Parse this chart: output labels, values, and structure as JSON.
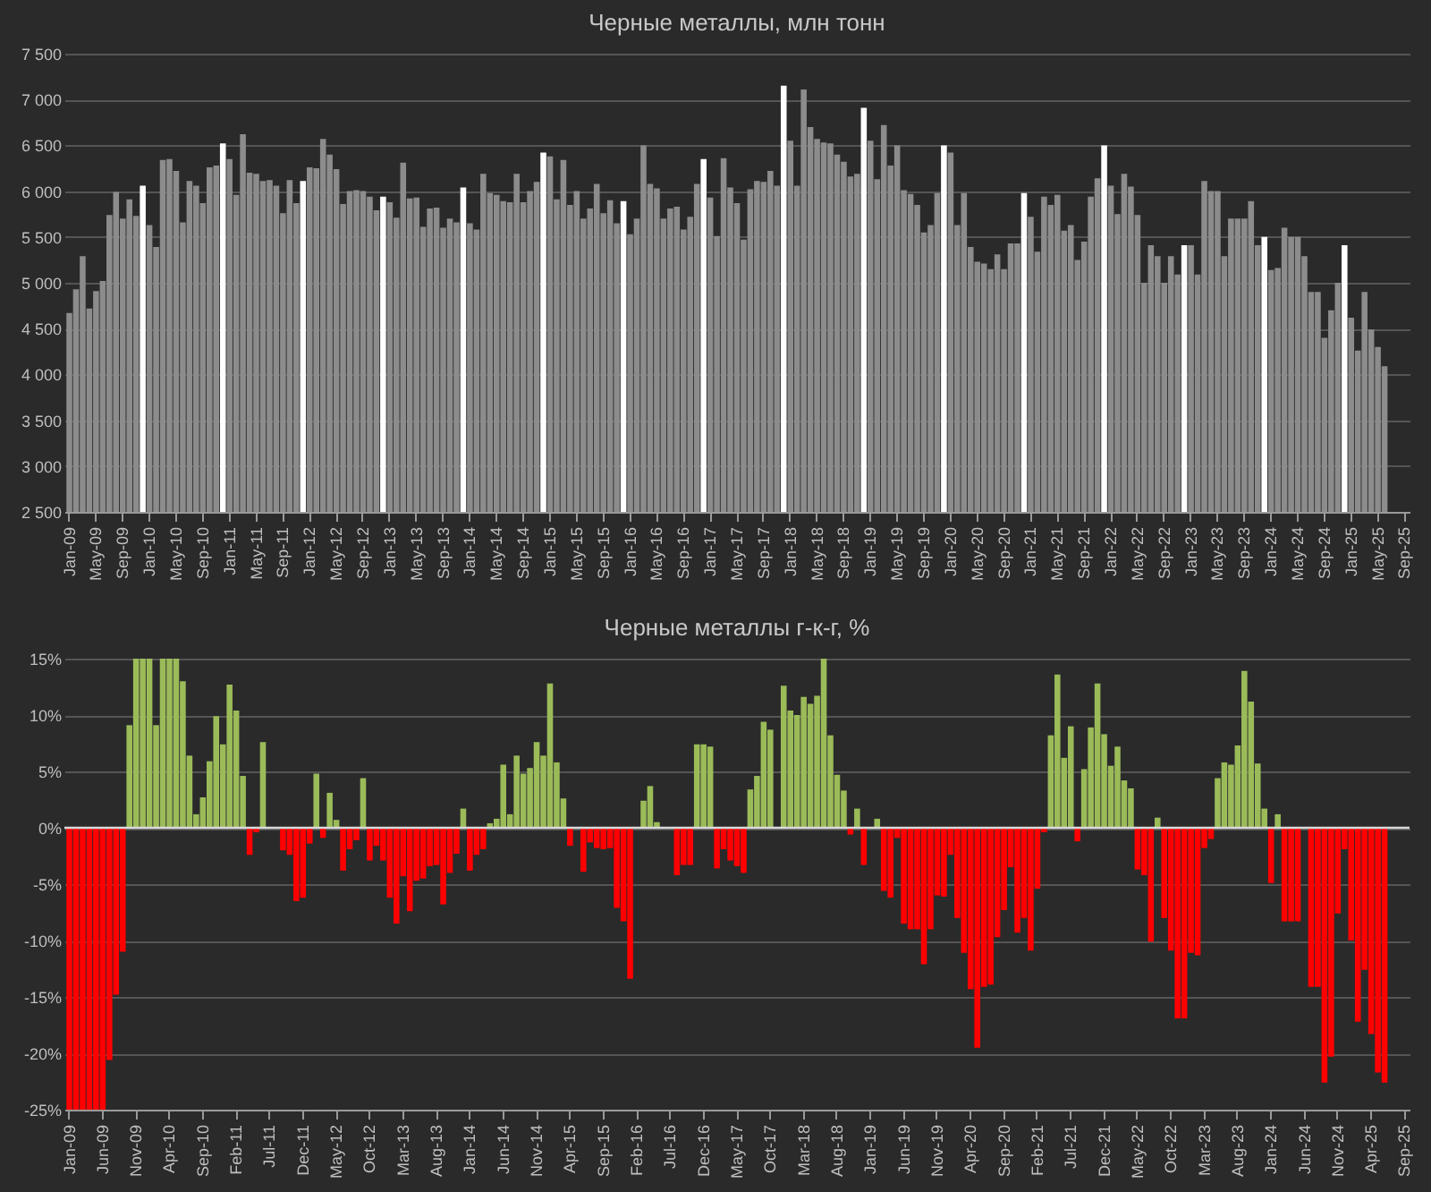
{
  "chart_data": [
    {
      "type": "bar",
      "title": "Черные металлы, млн тонн",
      "categories": [
        "Jan-09",
        null,
        null,
        null,
        "May-09",
        null,
        null,
        null,
        "Sep-09",
        null,
        null,
        null,
        "Jan-10",
        null,
        null,
        null,
        "May-10",
        null,
        null,
        null,
        "Sep-10",
        null,
        null,
        null,
        "Jan-11",
        null,
        null,
        null,
        "May-11",
        null,
        null,
        null,
        "Sep-11",
        null,
        null,
        null,
        "Jan-12",
        null,
        null,
        null,
        "May-12",
        null,
        null,
        null,
        "Sep-12",
        null,
        null,
        null,
        "Jan-13",
        null,
        null,
        null,
        "May-13",
        null,
        null,
        null,
        "Sep-13",
        null,
        null,
        null,
        "Jan-14",
        null,
        null,
        null,
        "May-14",
        null,
        null,
        null,
        "Sep-14",
        null,
        null,
        null,
        "Jan-15",
        null,
        null,
        null,
        "May-15",
        null,
        null,
        null,
        "Sep-15",
        null,
        null,
        null,
        "Jan-16",
        null,
        null,
        null,
        "May-16",
        null,
        null,
        null,
        "Sep-16",
        null,
        null,
        null,
        "Jan-17",
        null,
        null,
        null,
        "May-17",
        null,
        null,
        null,
        "Sep-17",
        null,
        null,
        null,
        "Jan-18",
        null,
        null,
        null,
        "May-18",
        null,
        null,
        null,
        "Sep-18",
        null,
        null,
        null,
        "Jan-19",
        null,
        null,
        null,
        "May-19",
        null,
        null,
        null,
        "Sep-19",
        null,
        null,
        null,
        "Jan-20",
        null,
        null,
        null,
        "May-20",
        null,
        null,
        null,
        "Sep-20",
        null,
        null,
        null,
        "Jan-21",
        null,
        null,
        null,
        "May-21",
        null,
        null,
        null,
        "Sep-21",
        null,
        null,
        null,
        "Jan-22",
        null,
        null,
        null,
        "May-22",
        null,
        null,
        null,
        "Sep-22",
        null,
        null,
        null,
        "Jan-23",
        null,
        null,
        null,
        "May-23",
        null,
        null,
        null,
        "Sep-23",
        null,
        null,
        null,
        "Jan-24",
        null,
        null,
        null,
        "May-24",
        null,
        null,
        null,
        "Sep-24",
        null,
        null,
        null,
        "Jan-25",
        null,
        null,
        null,
        "May-25",
        null,
        null,
        null,
        "Sep-25"
      ],
      "values": [
        4670,
        4930,
        5290,
        4720,
        4910,
        5020,
        5740,
        5990,
        5700,
        5910,
        5730,
        6060,
        5630,
        5390,
        6340,
        6350,
        6220,
        5660,
        6110,
        6060,
        5870,
        6260,
        6280,
        6520,
        6350,
        5960,
        6620,
        6200,
        6190,
        6110,
        6120,
        6060,
        5760,
        6120,
        5870,
        6110,
        6260,
        6250,
        6570,
        6400,
        6240,
        5860,
        6000,
        6010,
        6000,
        5940,
        5790,
        5940,
        5880,
        5710,
        6310,
        5920,
        5930,
        5610,
        5810,
        5820,
        5600,
        5700,
        5660,
        6040,
        5650,
        5580,
        6190,
        5980,
        5960,
        5890,
        5880,
        6190,
        5880,
        6000,
        6100,
        6420,
        6380,
        5910,
        6340,
        5850,
        6000,
        5700,
        5810,
        6080,
        5760,
        5900,
        5650,
        5890,
        5530,
        5700,
        6500,
        6080,
        6030,
        5700,
        5810,
        5830,
        5580,
        5720,
        6080,
        6350,
        5930,
        5510,
        6360,
        6040,
        5870,
        5470,
        6020,
        6110,
        6100,
        6220,
        6060,
        7150,
        6550,
        6060,
        7110,
        6700,
        6570,
        6530,
        6520,
        6400,
        6320,
        6160,
        6190,
        6910,
        6550,
        6130,
        6720,
        6280,
        6500,
        6010,
        5970,
        5850,
        5550,
        5630,
        5980,
        6500,
        6420,
        5630,
        5980,
        5390,
        5230,
        5210,
        5150,
        5310,
        5150,
        5430,
        5430,
        5980,
        5720,
        5340,
        5940,
        5850,
        5960,
        5570,
        5630,
        5250,
        5450,
        5940,
        6140,
        6500,
        6060,
        5750,
        6190,
        6050,
        5740,
        5000,
        5410,
        5290,
        5000,
        5290,
        5090,
        5410,
        5410,
        5090,
        6110,
        6000,
        6000,
        5290,
        5700,
        5700,
        5700,
        5890,
        5410,
        5500,
        5140,
        5160,
        5600,
        5500,
        5500,
        5290,
        4900,
        4900,
        4400,
        4700,
        5000,
        5410,
        4620,
        4260,
        4900,
        4490,
        4300,
        4090,
        null,
        null,
        null
      ],
      "colors": [
        "#8c8c8c",
        "#8c8c8c",
        "#8c8c8c",
        "#8c8c8c",
        "#8c8c8c",
        "#8c8c8c",
        "#8c8c8c",
        "#8c8c8c",
        "#8c8c8c",
        "#8c8c8c",
        "#8c8c8c",
        "#ffffff",
        "#8c8c8c",
        "#8c8c8c",
        "#8c8c8c",
        "#8c8c8c",
        "#8c8c8c",
        "#8c8c8c",
        "#8c8c8c",
        "#8c8c8c",
        "#8c8c8c",
        "#8c8c8c",
        "#8c8c8c",
        "#ffffff",
        "#8c8c8c",
        "#8c8c8c",
        "#8c8c8c",
        "#8c8c8c",
        "#8c8c8c",
        "#8c8c8c",
        "#8c8c8c",
        "#8c8c8c",
        "#8c8c8c",
        "#8c8c8c",
        "#8c8c8c",
        "#ffffff",
        "#8c8c8c",
        "#8c8c8c",
        "#8c8c8c",
        "#8c8c8c",
        "#8c8c8c",
        "#8c8c8c",
        "#8c8c8c",
        "#8c8c8c",
        "#8c8c8c",
        "#8c8c8c",
        "#8c8c8c",
        "#ffffff",
        "#8c8c8c",
        "#8c8c8c",
        "#8c8c8c",
        "#8c8c8c",
        "#8c8c8c",
        "#8c8c8c",
        "#8c8c8c",
        "#8c8c8c",
        "#8c8c8c",
        "#8c8c8c",
        "#8c8c8c",
        "#ffffff",
        "#8c8c8c",
        "#8c8c8c",
        "#8c8c8c",
        "#8c8c8c",
        "#8c8c8c",
        "#8c8c8c",
        "#8c8c8c",
        "#8c8c8c",
        "#8c8c8c",
        "#8c8c8c",
        "#8c8c8c",
        "#ffffff",
        "#8c8c8c",
        "#8c8c8c",
        "#8c8c8c",
        "#8c8c8c",
        "#8c8c8c",
        "#8c8c8c",
        "#8c8c8c",
        "#8c8c8c",
        "#8c8c8c",
        "#8c8c8c",
        "#8c8c8c",
        "#ffffff",
        "#8c8c8c",
        "#8c8c8c",
        "#8c8c8c",
        "#8c8c8c",
        "#8c8c8c",
        "#8c8c8c",
        "#8c8c8c",
        "#8c8c8c",
        "#8c8c8c",
        "#8c8c8c",
        "#8c8c8c",
        "#ffffff",
        "#8c8c8c",
        "#8c8c8c",
        "#8c8c8c",
        "#8c8c8c",
        "#8c8c8c",
        "#8c8c8c",
        "#8c8c8c",
        "#8c8c8c",
        "#8c8c8c",
        "#8c8c8c",
        "#8c8c8c",
        "#ffffff",
        "#8c8c8c",
        "#8c8c8c",
        "#8c8c8c",
        "#8c8c8c",
        "#8c8c8c",
        "#8c8c8c",
        "#8c8c8c",
        "#8c8c8c",
        "#8c8c8c",
        "#8c8c8c",
        "#8c8c8c",
        "#ffffff",
        "#8c8c8c",
        "#8c8c8c",
        "#8c8c8c",
        "#8c8c8c",
        "#8c8c8c",
        "#8c8c8c",
        "#8c8c8c",
        "#8c8c8c",
        "#8c8c8c",
        "#8c8c8c",
        "#8c8c8c",
        "#ffffff",
        "#8c8c8c",
        "#8c8c8c",
        "#8c8c8c",
        "#8c8c8c",
        "#8c8c8c",
        "#8c8c8c",
        "#8c8c8c",
        "#8c8c8c",
        "#8c8c8c",
        "#8c8c8c",
        "#8c8c8c",
        "#ffffff",
        "#8c8c8c",
        "#8c8c8c",
        "#8c8c8c",
        "#8c8c8c",
        "#8c8c8c",
        "#8c8c8c",
        "#8c8c8c",
        "#8c8c8c",
        "#8c8c8c",
        "#8c8c8c",
        "#8c8c8c",
        "#ffffff",
        "#8c8c8c",
        "#8c8c8c",
        "#8c8c8c",
        "#8c8c8c",
        "#8c8c8c",
        "#8c8c8c",
        "#8c8c8c",
        "#8c8c8c",
        "#8c8c8c",
        "#8c8c8c",
        "#8c8c8c",
        "#ffffff",
        "#8c8c8c",
        "#8c8c8c",
        "#8c8c8c",
        "#8c8c8c",
        "#8c8c8c",
        "#8c8c8c",
        "#8c8c8c",
        "#8c8c8c",
        "#8c8c8c",
        "#8c8c8c",
        "#8c8c8c",
        "#ffffff",
        "#8c8c8c",
        "#8c8c8c",
        "#8c8c8c",
        "#8c8c8c",
        "#8c8c8c",
        "#8c8c8c",
        "#8c8c8c",
        "#8c8c8c",
        "#8c8c8c",
        "#8c8c8c",
        "#8c8c8c",
        "#ffffff",
        "#8c8c8c",
        "#8c8c8c",
        "#8c8c8c",
        "#8c8c8c",
        "#8c8c8c",
        "#8c8c8c",
        null,
        null,
        null
      ],
      "ylim": [
        2500,
        7500
      ],
      "yticks": [
        {
          "value": 2500,
          "label": "2 500"
        },
        {
          "value": 3000,
          "label": "3 000"
        },
        {
          "value": 3500,
          "label": "3 500"
        },
        {
          "value": 4000,
          "label": "4 000"
        },
        {
          "value": 4500,
          "label": "4 500"
        },
        {
          "value": 5000,
          "label": "5 000"
        },
        {
          "value": 5500,
          "label": "5 500"
        },
        {
          "value": 6000,
          "label": "6 000"
        },
        {
          "value": 6500,
          "label": "6 500"
        },
        {
          "value": 7000,
          "label": "7 000"
        },
        {
          "value": 7500,
          "label": "7 500"
        }
      ],
      "grid": "y"
    },
    {
      "type": "bar",
      "title": "Черные металлы г-к-г, %",
      "categories": [
        "Jan-09",
        null,
        null,
        null,
        null,
        "Jun-09",
        null,
        null,
        null,
        null,
        "Nov-09",
        null,
        null,
        null,
        null,
        "Apr-10",
        null,
        null,
        null,
        null,
        "Sep-10",
        null,
        null,
        null,
        null,
        "Feb-11",
        null,
        null,
        null,
        null,
        "Jul-11",
        null,
        null,
        null,
        null,
        "Dec-11",
        null,
        null,
        null,
        null,
        "May-12",
        null,
        null,
        null,
        null,
        "Oct-12",
        null,
        null,
        null,
        null,
        "Mar-13",
        null,
        null,
        null,
        null,
        "Aug-13",
        null,
        null,
        null,
        null,
        "Jan-14",
        null,
        null,
        null,
        null,
        "Jun-14",
        null,
        null,
        null,
        null,
        "Nov-14",
        null,
        null,
        null,
        null,
        "Apr-15",
        null,
        null,
        null,
        null,
        "Sep-15",
        null,
        null,
        null,
        null,
        "Feb-16",
        null,
        null,
        null,
        null,
        "Jul-16",
        null,
        null,
        null,
        null,
        "Dec-16",
        null,
        null,
        null,
        null,
        "May-17",
        null,
        null,
        null,
        null,
        "Oct-17",
        null,
        null,
        null,
        null,
        "Mar-18",
        null,
        null,
        null,
        null,
        "Aug-18",
        null,
        null,
        null,
        null,
        "Jan-19",
        null,
        null,
        null,
        null,
        "Jun-19",
        null,
        null,
        null,
        null,
        "Nov-19",
        null,
        null,
        null,
        null,
        "Apr-20",
        null,
        null,
        null,
        null,
        "Sep-20",
        null,
        null,
        null,
        null,
        "Feb-21",
        null,
        null,
        null,
        null,
        "Jul-21",
        null,
        null,
        null,
        null,
        "Dec-21",
        null,
        null,
        null,
        null,
        "May-22",
        null,
        null,
        null,
        null,
        "Oct-22",
        null,
        null,
        null,
        null,
        "Mar-23",
        null,
        null,
        null,
        null,
        "Aug-23",
        null,
        null,
        null,
        null,
        "Jan-24",
        null,
        null,
        null,
        null,
        "Jun-24",
        null,
        null,
        null,
        null,
        "Nov-24",
        null,
        null,
        null,
        null,
        "Apr-25",
        null,
        null,
        null,
        null,
        "Sep-25"
      ],
      "values": [
        -25,
        -25,
        -25,
        -25,
        -25,
        -25,
        -20.6,
        -14.8,
        -11.0,
        9.1,
        15,
        15,
        15,
        9.1,
        15,
        15,
        15,
        13.0,
        6.4,
        1.2,
        2.7,
        5.9,
        9.9,
        7.4,
        12.7,
        10.4,
        4.6,
        -2.4,
        -0.4,
        7.6,
        null,
        0.0,
        -2.0,
        -2.4,
        -6.5,
        -6.2,
        -1.4,
        4.8,
        -0.9,
        3.1,
        0.7,
        -3.8,
        -1.9,
        -1.1,
        4.4,
        -2.9,
        -1.6,
        -2.9,
        -6.2,
        -8.5,
        -4.3,
        -7.4,
        -4.7,
        -4.5,
        -3.4,
        -3.3,
        -6.8,
        -4.0,
        -2.3,
        1.7,
        -3.8,
        -2.4,
        -1.9,
        0.4,
        0.8,
        5.6,
        1.2,
        6.4,
        4.8,
        5.3,
        7.6,
        6.4,
        12.8,
        5.8,
        2.6,
        -1.6,
        null,
        -3.9,
        -1.3,
        -1.8,
        -1.9,
        -1.8,
        -7.1,
        -8.3,
        -13.4,
        0.0,
        2.4,
        3.7,
        0.5,
        0.0,
        0.0,
        -4.2,
        -3.3,
        -3.3,
        7.4,
        7.4,
        7.2,
        -3.6,
        -1.9,
        -2.9,
        -3.4,
        -4.0,
        3.4,
        4.6,
        9.4,
        8.7,
        0.0,
        12.6,
        10.4,
        10.0,
        11.6,
        11.0,
        11.7,
        15.0,
        8.2,
        4.7,
        3.3,
        -0.6,
        1.7,
        -3.3,
        0.0,
        0.8,
        -5.6,
        -6.2,
        -0.9,
        -8.5,
        -9.0,
        -9.0,
        -12.1,
        -9.0,
        -6.0,
        -6.1,
        -2.4,
        -8.0,
        -11.1,
        -14.3,
        -19.5,
        -14.1,
        -13.9,
        -9.7,
        -7.3,
        -3.5,
        -9.3,
        -8.0,
        -10.9,
        -5.4,
        -0.4,
        8.2,
        13.6,
        6.2,
        9.0,
        -1.2,
        5.2,
        8.9,
        12.8,
        8.3,
        5.5,
        7.2,
        4.2,
        3.5,
        -3.7,
        -4.2,
        -10.1,
        0.9,
        -8.0,
        -10.9,
        -16.9,
        -16.9,
        -11.1,
        -11.3,
        -1.8,
        -1.0,
        4.4,
        5.8,
        5.6,
        7.3,
        13.9,
        11.2,
        5.7,
        1.7,
        -4.9,
        1.2,
        -8.3,
        -8.3,
        -8.3,
        0.0,
        -14.1,
        -14.1,
        -22.6,
        -20.3,
        -7.6,
        -1.9,
        -10.0,
        -17.2,
        -12.6,
        -18.3,
        -21.7,
        -22.6,
        null,
        null,
        null
      ],
      "colors": [
        "#ff0000",
        "#ff0000",
        "#ff0000",
        "#ff0000",
        "#ff0000",
        "#ff0000",
        "#ff0000",
        "#ff0000",
        "#ff0000",
        "#9bbb59",
        "#9bbb59",
        "#9bbb59",
        "#9bbb59",
        "#9bbb59",
        "#9bbb59",
        "#9bbb59",
        "#9bbb59",
        "#9bbb59",
        "#9bbb59",
        "#9bbb59",
        "#9bbb59",
        "#9bbb59",
        "#9bbb59",
        "#9bbb59",
        "#9bbb59",
        "#9bbb59",
        "#9bbb59",
        "#ff0000",
        "#ff0000",
        "#9bbb59",
        null,
        "#9bbb59",
        "#ff0000",
        "#ff0000",
        "#ff0000",
        "#ff0000",
        "#ff0000",
        "#9bbb59",
        "#ff0000",
        "#9bbb59",
        "#9bbb59",
        "#ff0000",
        "#ff0000",
        "#ff0000",
        "#9bbb59",
        "#ff0000",
        "#ff0000",
        "#ff0000",
        "#ff0000",
        "#ff0000",
        "#ff0000",
        "#ff0000",
        "#ff0000",
        "#ff0000",
        "#ff0000",
        "#ff0000",
        "#ff0000",
        "#ff0000",
        "#ff0000",
        "#9bbb59",
        "#ff0000",
        "#ff0000",
        "#ff0000",
        "#9bbb59",
        "#9bbb59",
        "#9bbb59",
        "#9bbb59",
        "#9bbb59",
        "#9bbb59",
        "#9bbb59",
        "#9bbb59",
        "#9bbb59",
        "#9bbb59",
        "#9bbb59",
        "#9bbb59",
        "#ff0000",
        null,
        "#ff0000",
        "#ff0000",
        "#ff0000",
        "#ff0000",
        "#ff0000",
        "#ff0000",
        "#ff0000",
        "#ff0000",
        "#9bbb59",
        "#9bbb59",
        "#9bbb59",
        "#9bbb59",
        "#9bbb59",
        "#9bbb59",
        "#ff0000",
        "#ff0000",
        "#ff0000",
        "#9bbb59",
        "#9bbb59",
        "#9bbb59",
        "#ff0000",
        "#ff0000",
        "#ff0000",
        "#ff0000",
        "#ff0000",
        "#9bbb59",
        "#9bbb59",
        "#9bbb59",
        "#9bbb59",
        "#9bbb59",
        "#9bbb59",
        "#9bbb59",
        "#9bbb59",
        "#9bbb59",
        "#9bbb59",
        "#9bbb59",
        "#9bbb59",
        "#9bbb59",
        "#9bbb59",
        "#9bbb59",
        "#ff0000",
        "#9bbb59",
        "#ff0000",
        "#9bbb59",
        "#9bbb59",
        "#ff0000",
        "#ff0000",
        "#ff0000",
        "#ff0000",
        "#ff0000",
        "#ff0000",
        "#ff0000",
        "#ff0000",
        "#ff0000",
        "#ff0000",
        "#ff0000",
        "#ff0000",
        "#ff0000",
        "#ff0000",
        "#ff0000",
        "#ff0000",
        "#ff0000",
        "#ff0000",
        "#ff0000",
        "#ff0000",
        "#ff0000",
        "#ff0000",
        "#ff0000",
        "#ff0000",
        "#ff0000",
        "#9bbb59",
        "#9bbb59",
        "#9bbb59",
        "#9bbb59",
        "#ff0000",
        "#9bbb59",
        "#9bbb59",
        "#9bbb59",
        "#9bbb59",
        "#9bbb59",
        "#9bbb59",
        "#9bbb59",
        "#9bbb59",
        "#ff0000",
        "#ff0000",
        "#ff0000",
        "#9bbb59",
        "#ff0000",
        "#ff0000",
        "#ff0000",
        "#ff0000",
        "#ff0000",
        "#ff0000",
        "#ff0000",
        "#ff0000",
        "#9bbb59",
        "#9bbb59",
        "#9bbb59",
        "#9bbb59",
        "#9bbb59",
        "#9bbb59",
        "#9bbb59",
        "#9bbb59",
        "#ff0000",
        "#9bbb59",
        "#ff0000",
        "#ff0000",
        "#ff0000",
        "#9bbb59",
        "#ff0000",
        "#ff0000",
        "#ff0000",
        "#ff0000",
        "#ff0000",
        "#ff0000",
        "#ff0000",
        "#ff0000",
        "#ff0000",
        "#ff0000",
        "#ff0000",
        "#ff0000",
        null,
        null,
        null
      ],
      "ylim": [
        -25,
        15
      ],
      "yticks": [
        {
          "value": -25,
          "label": "-25%"
        },
        {
          "value": -20,
          "label": "-20%"
        },
        {
          "value": -15,
          "label": "-15%"
        },
        {
          "value": -10,
          "label": "-10%"
        },
        {
          "value": -5,
          "label": "-5%"
        },
        {
          "value": 0,
          "label": "0%"
        },
        {
          "value": 5,
          "label": "5%"
        },
        {
          "value": 10,
          "label": "10%"
        },
        {
          "value": 15,
          "label": "15%"
        }
      ],
      "ref_lines": [
        {
          "axis": "y",
          "value": 0,
          "color": "#d9d9d9"
        }
      ],
      "grid": "y"
    }
  ]
}
